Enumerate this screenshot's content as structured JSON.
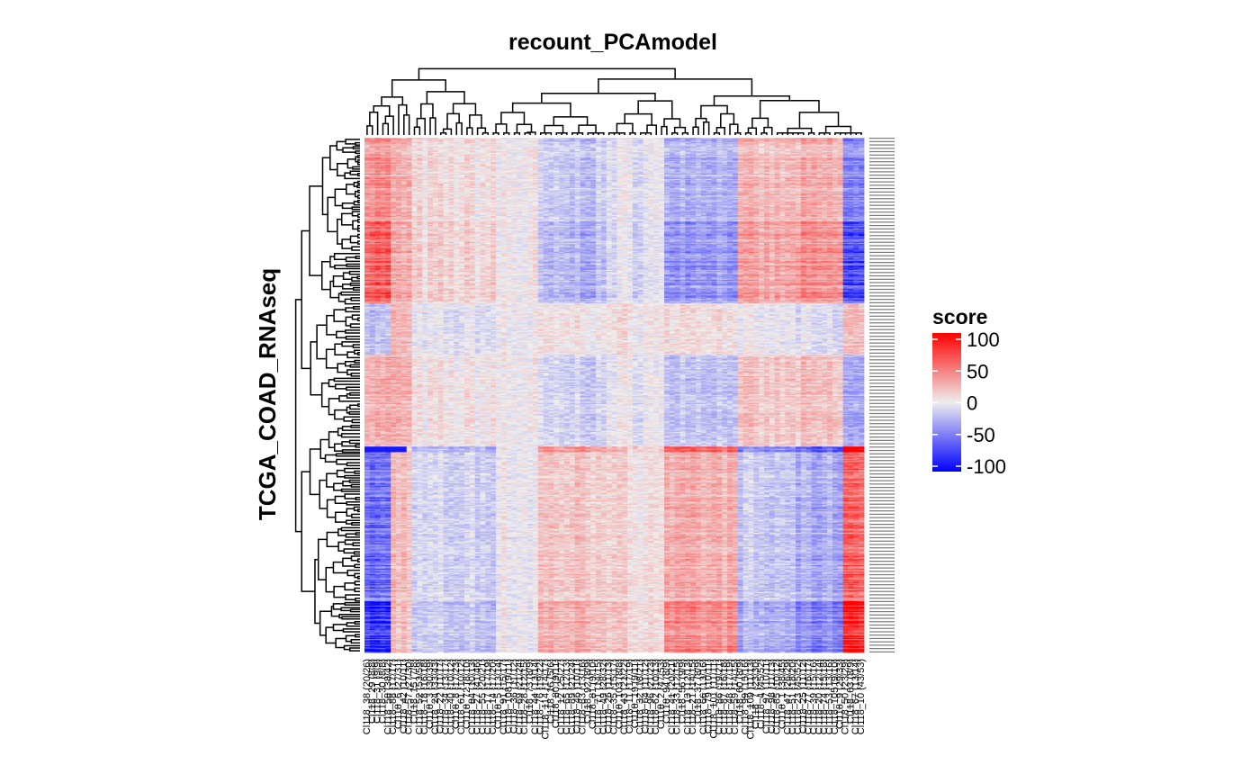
{
  "chart_data": {
    "type": "heatmap",
    "title": "recount_PCAmodel",
    "xlabel": "",
    "ylabel": "TCGA_COAD_RNAseq",
    "legend": {
      "title": "score",
      "placement": "right",
      "ticks": [
        100,
        50,
        0,
        -50,
        -100
      ],
      "tick_labels": [
        "100",
        "50",
        "0",
        "-50",
        "-100"
      ],
      "colors": {
        "high": "#FF0000",
        "mid": "#EEEEEE",
        "low": "#0000FF"
      },
      "range": [
        -100,
        100
      ]
    },
    "row_dendrogram": true,
    "column_dendrogram": true,
    "column_labels": [
      "Cl118_38 (20/26)",
      "Cl118_29 (8/8)",
      "Cl118_31 (9/9)",
      "Cl118_30 (8/8)",
      "Cl118_58 (38/42)",
      "Cl118_88 (17/17)",
      "Cl118_6 (27/31)",
      "Cl118_42 (10/11)",
      "Cl118_57 (27/30)",
      "Cl118_15 (7/8)",
      "Cl118_52 (53/59)",
      "Cl118_18 (16/18)",
      "Cl118_3 (30/39)",
      "Cl118_24 (33/43)",
      "Cl118_22 (11/17)",
      "Cl118_34 (13/17)",
      "Cl118_40 (10/12)",
      "Cl118_8 (17/23)",
      "Cl118_61 (10/12)",
      "Cl118_72 (8/10)",
      "Cl118_84 (10/13)",
      "Cl118_27 (41/46)",
      "Cl118_55 (20/21)",
      "Cl118_17 (17/19)",
      "Cl118_14 (17/20)",
      "Cl118_5 (13/14)",
      "Cl118_91 (15/17)",
      "Cl118_108 (9/11)",
      "Cl118_36 (11/12)",
      "Cl118_69 (21/24)",
      "Cl118_28 (12/15)",
      "Cl118_73 (8/9)",
      "Cl118_44 (13/14)",
      "Cl118_76 (19/22)",
      "Cl118_114 (14/17)",
      "Cl118_16 (5/6)",
      "Cl118_80 (9/11)",
      "Cl118_12 (25/27)",
      "Cl118_65 (12/13)",
      "Cl118_89 (21/24)",
      "Cl118_46 (10/11)",
      "Cl118_83 (13/16)",
      "Cl118_92 (8/9)",
      "Cl118_81 (9/10)",
      "Cl118_71 (14/15)",
      "Cl118_49 (28/32)",
      "Cl118_26 (11/13)",
      "Cl118_35 (15/17)",
      "Cl118_103 (8/8)",
      "Cl118_43 (21/22)",
      "Cl118_11 (17/19)",
      "Cl118_19 (9/11)",
      "Cl118_32 (18/21)",
      "Cl118_64 (11/12)",
      "Cl118_96 (21/23)",
      "Cl118_62 (10/13)",
      "Cl118_2 (47/53)",
      "Cl118_94 (8/9)",
      "Cl118_41 (20/21)",
      "Cl118_33 (12/15)",
      "Cl118_56 (9/9)",
      "Cl118_13 (12/13)",
      "Cl118_21 (14/15)",
      "Cl118_37 (8/9)",
      "Cl118_66 (13/16)",
      "Cl118_79 (10/11)",
      "Cl118_101 (11/11)",
      "Cl118_86 (19/21)",
      "Cl118_87 (16/18)",
      "Cl118_48 (17/19)",
      "Cl118_59 (14/15)",
      "Cl118_60 (8/9)",
      "Cl118_99 (15/16)",
      "Cl118_109 (11/13)",
      "Cl118_7 (23/30)",
      "Cl118_4 (45/52)",
      "Cl118_97 (10/11)",
      "Cl118_98 (11/13)",
      "Cl118_85 (10/12)",
      "Cl118_1 (38/45)",
      "Cl118_47 (26/29)",
      "Cl118_51 (18/20)",
      "Cl118_23 (45/52)",
      "Cl118_25 (11/12)",
      "Cl118_77 (16/17)",
      "Cl118_39 (15/16)",
      "Cl118_20 (12/14)",
      "Cl118_74 (15/18)",
      "Cl118_53 (13/16)",
      "Cl118_105 (9/10)",
      "Cl118_9 (29/33)",
      "Cl118_50 (23/29)",
      "Cl118_63 (8/9)",
      "Cl118_67 (13/14)",
      "Cl118_10 (43/53)"
    ],
    "row_count": 460,
    "row_labels_note": "row sample labels rendered too small to read"
  },
  "colors": {
    "background": "#FFFFFF",
    "text": "#000000",
    "dendrogram": "#000000",
    "row_label": "#7a7a7a"
  }
}
